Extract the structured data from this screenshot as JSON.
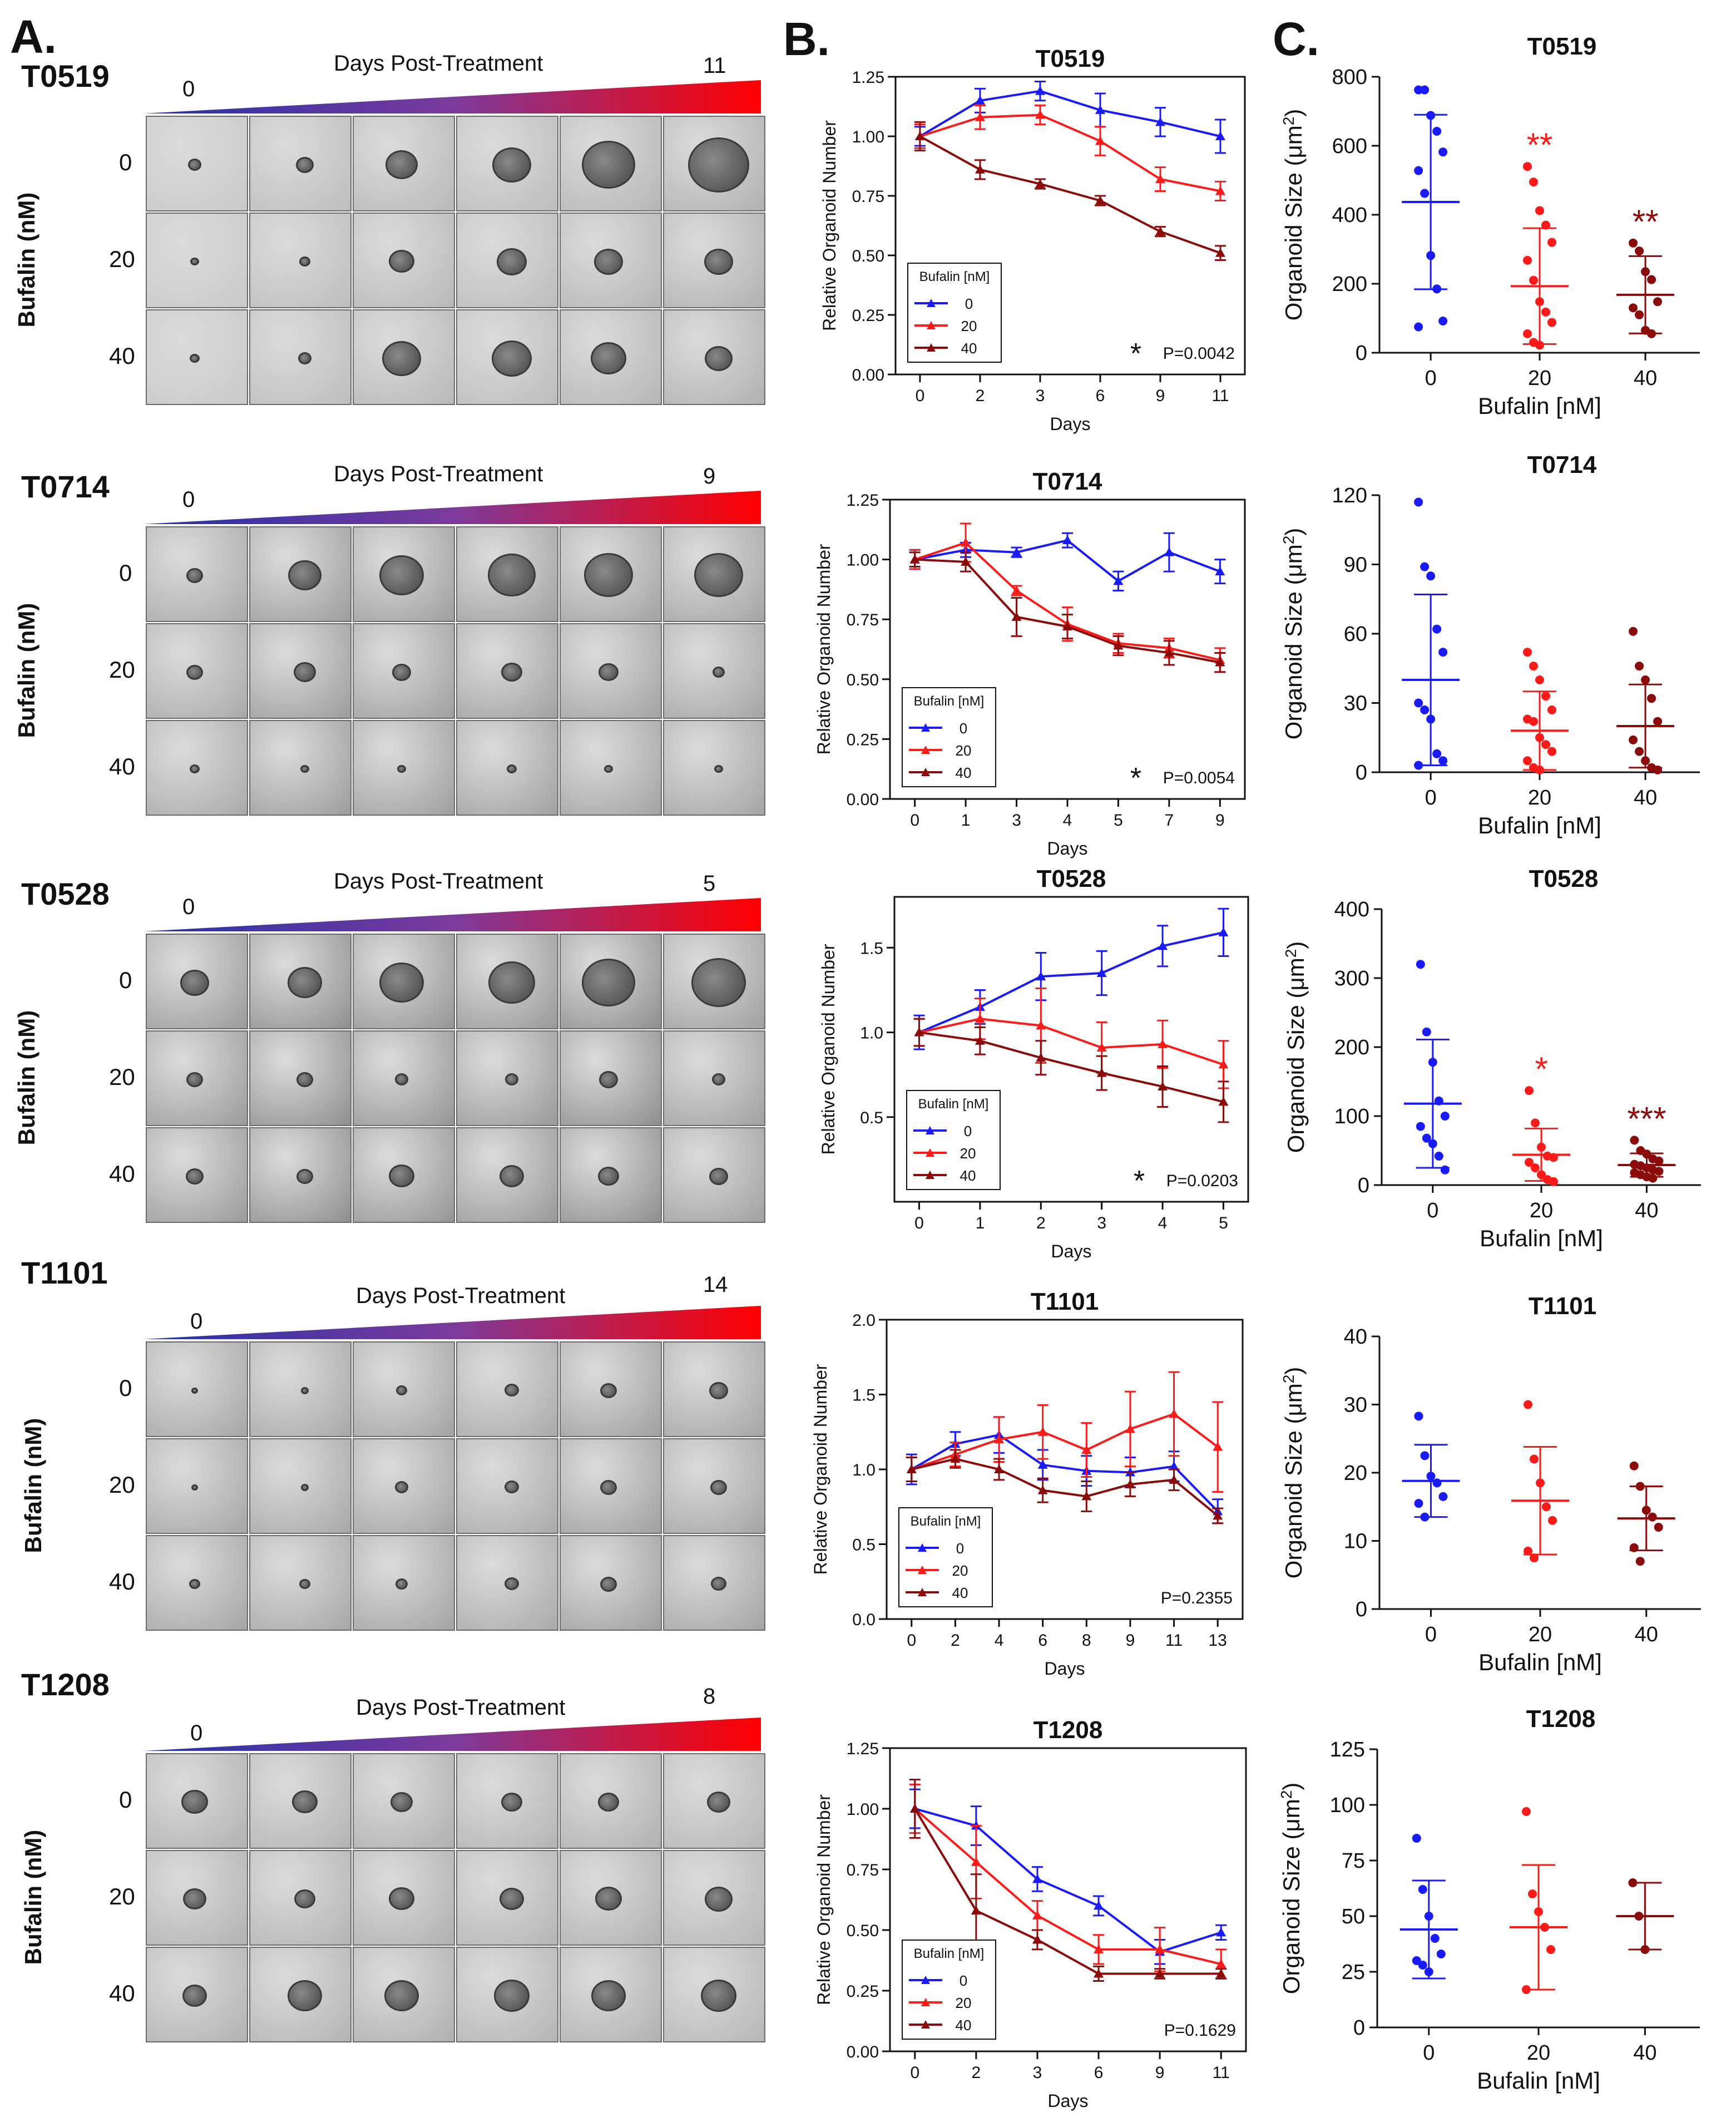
{
  "panel_labels": {
    "a": "A.",
    "b": "B.",
    "c": "C."
  },
  "panel_a": {
    "header_label": "Days Post-Treatment",
    "row_axis_label": "Bufalin (nM)",
    "rows": [
      {
        "id": "T0519",
        "day_start": "0",
        "day_end": "11",
        "doses": [
          "0",
          "20",
          "40"
        ]
      },
      {
        "id": "T0714",
        "day_start": "0",
        "day_end": "9",
        "doses": [
          "0",
          "20",
          "40"
        ]
      },
      {
        "id": "T0528",
        "day_start": "0",
        "day_end": "5",
        "doses": [
          "0",
          "20",
          "40"
        ]
      },
      {
        "id": "T1101",
        "day_start": "0",
        "day_end": "14",
        "doses": [
          "0",
          "20",
          "40"
        ]
      },
      {
        "id": "T1208",
        "day_start": "0",
        "day_end": "8",
        "doses": [
          "0",
          "20",
          "40"
        ]
      }
    ],
    "gradient_colors": [
      "#2233aa",
      "#7b3a9c",
      "#ff0000"
    ]
  },
  "colors": {
    "dose0": "#1a1aff",
    "dose20": "#ff1a1a",
    "dose40": "#8b0a0a",
    "axis": "#111111"
  },
  "chart_data": [
    {
      "panel": "B",
      "type": "line",
      "title": "T0519",
      "xlabel": "Days",
      "ylabel": "Relative Organoid Number",
      "categories": [
        "0",
        "2",
        "3",
        "6",
        "9",
        "11"
      ],
      "ylim": [
        0,
        1.25
      ],
      "yticks": [
        "0.00",
        "0.25",
        "0.50",
        "0.75",
        "1.00",
        "1.25"
      ],
      "legend_title": "Bufalin [nM]",
      "legend_placement": "bottom-left",
      "pvalue": "P=0.0042",
      "pvalue_star": "*",
      "series": [
        {
          "name": "0",
          "values": [
            1.0,
            1.15,
            1.19,
            1.11,
            1.06,
            1.0
          ],
          "errors": [
            0.04,
            0.05,
            0.04,
            0.07,
            0.06,
            0.07
          ]
        },
        {
          "name": "20",
          "values": [
            1.0,
            1.08,
            1.09,
            0.98,
            0.82,
            0.77
          ],
          "errors": [
            0.05,
            0.05,
            0.04,
            0.06,
            0.05,
            0.04
          ]
        },
        {
          "name": "40",
          "values": [
            1.0,
            0.86,
            0.8,
            0.73,
            0.6,
            0.51
          ],
          "errors": [
            0.06,
            0.04,
            0.02,
            0.02,
            0.02,
            0.03
          ]
        }
      ]
    },
    {
      "panel": "B",
      "type": "line",
      "title": "T0714",
      "xlabel": "Days",
      "ylabel": "Relative Organoid Number",
      "categories": [
        "0",
        "1",
        "3",
        "4",
        "5",
        "7",
        "9"
      ],
      "ylim": [
        0,
        1.25
      ],
      "yticks": [
        "0.00",
        "0.25",
        "0.50",
        "0.75",
        "1.00",
        "1.25"
      ],
      "legend_title": "Bufalin [nM]",
      "legend_placement": "bottom-left",
      "pvalue": "P=0.0054",
      "pvalue_star": "*",
      "series": [
        {
          "name": "0",
          "values": [
            1.0,
            1.04,
            1.03,
            1.08,
            0.91,
            1.03,
            0.95
          ],
          "errors": [
            0.04,
            0.03,
            0.02,
            0.03,
            0.04,
            0.08,
            0.05
          ]
        },
        {
          "name": "20",
          "values": [
            1.0,
            1.07,
            0.87,
            0.73,
            0.65,
            0.63,
            0.58
          ],
          "errors": [
            0.04,
            0.08,
            0.02,
            0.07,
            0.04,
            0.04,
            0.05
          ]
        },
        {
          "name": "40",
          "values": [
            1.0,
            0.99,
            0.76,
            0.72,
            0.64,
            0.61,
            0.57
          ],
          "errors": [
            0.03,
            0.04,
            0.08,
            0.05,
            0.04,
            0.05,
            0.04
          ]
        }
      ]
    },
    {
      "panel": "B",
      "type": "line",
      "title": "T0528",
      "xlabel": "Days",
      "ylabel": "Relative Organoid Number",
      "categories": [
        "0",
        "1",
        "2",
        "3",
        "4",
        "5"
      ],
      "ylim": [
        0,
        1.8
      ],
      "yticks": [
        "0.5",
        "1.0",
        "1.5"
      ],
      "legend_title": "Bufalin [nM]",
      "legend_placement": "bottom-left",
      "pvalue": "P=0.0203",
      "pvalue_star": "*",
      "series": [
        {
          "name": "0",
          "values": [
            1.0,
            1.15,
            1.33,
            1.35,
            1.51,
            1.59
          ],
          "errors": [
            0.1,
            0.1,
            0.14,
            0.13,
            0.12,
            0.14
          ]
        },
        {
          "name": "20",
          "values": [
            1.0,
            1.08,
            1.04,
            0.91,
            0.93,
            0.81
          ],
          "errors": [
            0.08,
            0.12,
            0.22,
            0.15,
            0.14,
            0.14
          ]
        },
        {
          "name": "40",
          "values": [
            1.0,
            0.95,
            0.85,
            0.76,
            0.68,
            0.59
          ],
          "errors": [
            0.08,
            0.08,
            0.1,
            0.1,
            0.12,
            0.12
          ]
        }
      ]
    },
    {
      "panel": "B",
      "type": "line",
      "title": "T1101",
      "xlabel": "Days",
      "ylabel": "Relative Organoid Number",
      "categories": [
        "0",
        "2",
        "4",
        "6",
        "8",
        "9",
        "11",
        "13"
      ],
      "ylim": [
        0,
        2.0
      ],
      "yticks": [
        "0.0",
        "0.5",
        "1.0",
        "1.5",
        "2.0"
      ],
      "legend_title": "Bufalin [nM]",
      "legend_placement": "bottom-left",
      "pvalue": "P=0.2355",
      "pvalue_star": "",
      "series": [
        {
          "name": "0",
          "values": [
            1.0,
            1.17,
            1.23,
            1.03,
            0.99,
            0.98,
            1.02,
            0.72
          ],
          "errors": [
            0.1,
            0.08,
            0.12,
            0.1,
            0.1,
            0.1,
            0.1,
            0.08
          ]
        },
        {
          "name": "20",
          "values": [
            1.0,
            1.1,
            1.2,
            1.25,
            1.13,
            1.27,
            1.37,
            1.15
          ],
          "errors": [
            0.08,
            0.08,
            0.15,
            0.18,
            0.18,
            0.25,
            0.28,
            0.3
          ]
        },
        {
          "name": "40",
          "values": [
            1.0,
            1.07,
            1.0,
            0.86,
            0.82,
            0.9,
            0.93,
            0.69
          ],
          "errors": [
            0.08,
            0.06,
            0.07,
            0.08,
            0.1,
            0.08,
            0.07,
            0.05
          ]
        }
      ]
    },
    {
      "panel": "B",
      "type": "line",
      "title": "T1208",
      "xlabel": "Days",
      "ylabel": "Relative Organoid Number",
      "categories": [
        "0",
        "2",
        "3",
        "6",
        "9",
        "11"
      ],
      "ylim": [
        0,
        1.25
      ],
      "yticks": [
        "0.00",
        "0.25",
        "0.50",
        "0.75",
        "1.00",
        "1.25"
      ],
      "legend_title": "Bufalin [nM]",
      "legend_placement": "bottom-left",
      "pvalue": "P=0.1629",
      "pvalue_star": "",
      "series": [
        {
          "name": "0",
          "values": [
            1.0,
            0.93,
            0.71,
            0.6,
            0.41,
            0.49
          ],
          "errors": [
            0.08,
            0.08,
            0.05,
            0.04,
            0.05,
            0.03
          ]
        },
        {
          "name": "20",
          "values": [
            1.0,
            0.78,
            0.56,
            0.42,
            0.42,
            0.36
          ],
          "errors": [
            0.1,
            0.15,
            0.06,
            0.06,
            0.09,
            0.06
          ]
        },
        {
          "name": "40",
          "values": [
            1.0,
            0.58,
            0.46,
            0.32,
            0.32,
            0.32
          ],
          "errors": [
            0.12,
            0.15,
            0.04,
            0.03,
            0.02,
            0.02
          ]
        }
      ]
    },
    {
      "panel": "C",
      "type": "scatter",
      "title": "T0519",
      "xlabel": "Bufalin [nM]",
      "ylabel_main": "Organoid Size (μm",
      "ylabel_sup": "2",
      "ylabel_end": ")",
      "categories": [
        "0",
        "20",
        "40"
      ],
      "ylim": [
        0,
        800
      ],
      "yticks": [
        "0",
        "200",
        "400",
        "600",
        "800"
      ],
      "means": [
        437,
        193,
        168
      ],
      "sds": [
        253,
        168,
        112
      ],
      "significance": [
        "",
        "**",
        "**"
      ],
      "points": [
        [
          762,
          762,
          688,
          642,
          582,
          528,
          462,
          282,
          185,
          92,
          75
        ],
        [
          540,
          495,
          412,
          370,
          320,
          268,
          210,
          148,
          118,
          88,
          55,
          30,
          22
        ],
        [
          318,
          295,
          235,
          212,
          148,
          130,
          110,
          65,
          55
        ]
      ]
    },
    {
      "panel": "C",
      "type": "scatter",
      "title": "T0714",
      "xlabel": "Bufalin [nM]",
      "ylabel_main": "Organoid Size (μm",
      "ylabel_sup": "2",
      "ylabel_end": ")",
      "categories": [
        "0",
        "20",
        "40"
      ],
      "ylim": [
        0,
        120
      ],
      "yticks": [
        "0",
        "30",
        "60",
        "90",
        "120"
      ],
      "means": [
        40,
        18,
        20
      ],
      "sds": [
        37,
        17,
        18
      ],
      "significance": [
        "",
        "",
        ""
      ],
      "points": [
        [
          117,
          89,
          85,
          62,
          52,
          30,
          27,
          23,
          8,
          5,
          3
        ],
        [
          52,
          46,
          40,
          33,
          27,
          23,
          22,
          15,
          12,
          9,
          5,
          2,
          1
        ],
        [
          61,
          46,
          40,
          32,
          22,
          14,
          9,
          5,
          2,
          1
        ]
      ]
    },
    {
      "panel": "C",
      "type": "scatter",
      "title": "T0528",
      "xlabel": "Bufalin [nM]",
      "ylabel_main": "Organoid Size (μm",
      "ylabel_sup": "2",
      "ylabel_end": ")",
      "categories": [
        "0",
        "20",
        "40"
      ],
      "ylim": [
        0,
        400
      ],
      "yticks": [
        "0",
        "100",
        "200",
        "300",
        "400"
      ],
      "means": [
        118,
        44,
        29
      ],
      "sds": [
        93,
        38,
        17
      ],
      "significance": [
        "",
        "*",
        "***"
      ],
      "points": [
        [
          320,
          222,
          178,
          122,
          100,
          85,
          68,
          60,
          42,
          22
        ],
        [
          137,
          90,
          55,
          42,
          40,
          33,
          25,
          15,
          8,
          5
        ],
        [
          65,
          50,
          45,
          38,
          35,
          30,
          28,
          25,
          22,
          20,
          18,
          15,
          12,
          10
        ]
      ]
    },
    {
      "panel": "C",
      "type": "scatter",
      "title": "T1101",
      "xlabel": "Bufalin [nM]",
      "ylabel_main": "Organoid Size (μm",
      "ylabel_sup": "2",
      "ylabel_end": ")",
      "categories": [
        "0",
        "20",
        "40"
      ],
      "ylim": [
        0,
        40
      ],
      "yticks": [
        "0",
        "10",
        "20",
        "30",
        "40"
      ],
      "means": [
        18.8,
        15.9,
        13.3
      ],
      "sds": [
        5.3,
        7.9,
        4.7
      ],
      "significance": [
        "",
        "",
        ""
      ],
      "points": [
        [
          28.3,
          22.5,
          19.5,
          18.5,
          16.5,
          15.5,
          13.5
        ],
        [
          30,
          22,
          18.5,
          15,
          13,
          8.5,
          7.5
        ],
        [
          21,
          18,
          14.5,
          13.5,
          12,
          9,
          7
        ]
      ]
    },
    {
      "panel": "C",
      "type": "scatter",
      "title": "T1208",
      "xlabel": "Bufalin [nM]",
      "ylabel_main": "Organoid Size (μm",
      "ylabel_sup": "2",
      "ylabel_end": ")",
      "categories": [
        "0",
        "20",
        "40"
      ],
      "ylim": [
        0,
        125
      ],
      "yticks": [
        "0",
        "25",
        "50",
        "75",
        "100",
        "125"
      ],
      "means": [
        44,
        45,
        50
      ],
      "sds": [
        22,
        28,
        15
      ],
      "significance": [
        "",
        "",
        ""
      ],
      "points": [
        [
          85,
          62,
          50,
          40,
          33,
          30,
          28,
          25
        ],
        [
          97,
          60,
          52,
          45,
          35,
          17
        ],
        [
          65,
          50,
          35
        ]
      ]
    }
  ]
}
